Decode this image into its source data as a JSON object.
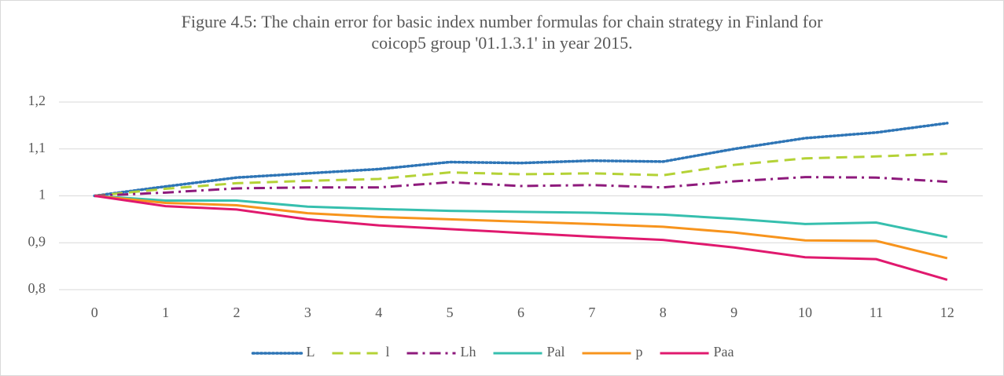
{
  "chart_data": {
    "type": "line",
    "title": "Figure 4.5: The chain error for basic index number formulas for chain strategy in Finland for coicop5 group '01.1.3.1' in year 2015.",
    "categories": [
      "0",
      "1",
      "2",
      "3",
      "4",
      "5",
      "6",
      "7",
      "8",
      "9",
      "10",
      "11",
      "12"
    ],
    "series": [
      {
        "name": "L",
        "color": "#2e75b6",
        "style": "dotted",
        "values": [
          1.0,
          1.02,
          1.039,
          1.048,
          1.057,
          1.072,
          1.07,
          1.075,
          1.073,
          1.1,
          1.123,
          1.135,
          1.155
        ]
      },
      {
        "name": "l",
        "color": "#b4d236",
        "style": "dashed",
        "values": [
          1.0,
          1.015,
          1.027,
          1.032,
          1.036,
          1.05,
          1.046,
          1.048,
          1.044,
          1.066,
          1.08,
          1.084,
          1.09
        ]
      },
      {
        "name": "Lh",
        "color": "#8e1a7c",
        "style": "dashdot",
        "values": [
          1.0,
          1.007,
          1.016,
          1.018,
          1.018,
          1.029,
          1.021,
          1.023,
          1.018,
          1.031,
          1.04,
          1.039,
          1.03
        ]
      },
      {
        "name": "Pal",
        "color": "#36bfae",
        "style": "solid",
        "values": [
          1.0,
          0.99,
          0.99,
          0.977,
          0.972,
          0.968,
          0.966,
          0.964,
          0.96,
          0.951,
          0.94,
          0.943,
          0.912
        ]
      },
      {
        "name": "p",
        "color": "#f7941d",
        "style": "solid",
        "values": [
          1.0,
          0.985,
          0.98,
          0.963,
          0.955,
          0.95,
          0.945,
          0.94,
          0.934,
          0.922,
          0.905,
          0.904,
          0.867
        ]
      },
      {
        "name": "Paa",
        "color": "#e0196e",
        "style": "solid",
        "values": [
          1.0,
          0.978,
          0.971,
          0.95,
          0.937,
          0.929,
          0.921,
          0.913,
          0.906,
          0.89,
          0.869,
          0.865,
          0.821
        ]
      }
    ],
    "ylim": [
      0.8,
      1.2
    ],
    "yticks": [
      {
        "value": 0.8,
        "label": "0,8"
      },
      {
        "value": 0.9,
        "label": "0,9"
      },
      1,
      {
        "value": 1.1,
        "label": "1,1"
      },
      {
        "value": 1.2,
        "label": "1,2"
      }
    ],
    "grid": true,
    "legend": "bottom"
  }
}
